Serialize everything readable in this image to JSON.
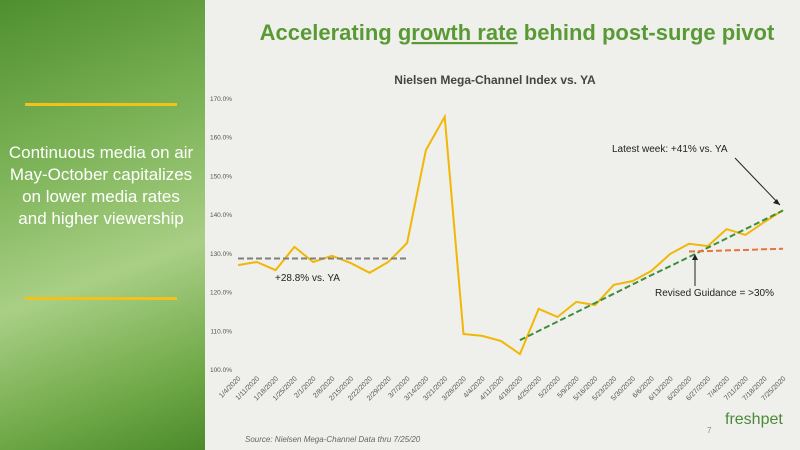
{
  "slide": {
    "title_parts": [
      "Accelerating ",
      "growth rate",
      " behind post-surge pivot"
    ],
    "sidebar_text": "Continuous media on air May-October capitalizes on lower media rates and higher viewership",
    "source": "Source: Nielsen Mega-Channel Data thru 7/25/20",
    "page_number": 7,
    "logo": "freshpet"
  },
  "chart_data": {
    "type": "line",
    "title": "Nielsen Mega-Channel Index vs. YA",
    "categories": [
      "1/4/2020",
      "1/11/2020",
      "1/18/2020",
      "1/25/2020",
      "2/1/2020",
      "2/8/2020",
      "2/15/2020",
      "2/22/2020",
      "2/29/2020",
      "3/7/2020",
      "3/14/2020",
      "3/21/2020",
      "3/28/2020",
      "4/4/2020",
      "4/11/2020",
      "4/18/2020",
      "4/25/2020",
      "5/2/2020",
      "5/9/2020",
      "5/16/2020",
      "5/23/2020",
      "5/30/2020",
      "6/6/2020",
      "6/13/2020",
      "6/20/2020",
      "6/27/2020",
      "7/4/2020",
      "7/11/2020",
      "7/18/2020",
      "7/25/2020"
    ],
    "series": [
      {
        "color": "#f2b705",
        "style": "solid",
        "values": [
          127.1,
          127.9,
          125.8,
          131.8,
          127.9,
          129.5,
          127.6,
          125.1,
          127.9,
          132.8,
          156.8,
          165.4,
          109.3,
          108.8,
          107.5,
          104.1,
          115.8,
          113.7,
          117.6,
          116.8,
          122,
          123,
          125.6,
          130,
          132.6,
          132,
          136.4,
          134.9,
          138.2,
          141.3
        ]
      },
      {
        "color": "#7f7f7f",
        "style": "dashed",
        "values": [
          128.8,
          128.8,
          128.8,
          128.8,
          128.8,
          128.8,
          128.8,
          128.8,
          128.8,
          128.8,
          null,
          null,
          null,
          null,
          null,
          null,
          null,
          null,
          null,
          null,
          null,
          null,
          null,
          null,
          null,
          null,
          null,
          null,
          null,
          null
        ]
      },
      {
        "color": "#3f8f3a",
        "style": "dashed",
        "values": [
          null,
          null,
          null,
          null,
          null,
          null,
          null,
          null,
          null,
          null,
          null,
          null,
          null,
          null,
          null,
          107.7,
          110.1,
          112.5,
          114.9,
          117.3,
          119.7,
          122.1,
          124.5,
          126.8,
          129.2,
          131.6,
          134,
          136.4,
          138.8,
          141.2
        ]
      },
      {
        "color": "#e8743b",
        "style": "dashed",
        "values": [
          null,
          null,
          null,
          null,
          null,
          null,
          null,
          null,
          null,
          null,
          null,
          null,
          null,
          null,
          null,
          null,
          null,
          null,
          null,
          null,
          null,
          null,
          null,
          null,
          130.6,
          130.7,
          130.9,
          131,
          131.2,
          131.3
        ]
      }
    ],
    "ylim": [
      100,
      170
    ],
    "yticks": [
      {
        "value": 100,
        "label": "100.0%"
      },
      {
        "value": 110,
        "label": "110.0%"
      },
      {
        "value": 120,
        "label": "120.0%"
      },
      {
        "value": 130,
        "label": "130.0%"
      },
      {
        "value": 140,
        "label": "140.0%"
      },
      {
        "value": 150,
        "label": "150.0%"
      },
      {
        "value": 160,
        "label": "160.0%"
      },
      {
        "value": 170,
        "label": "170.0%"
      }
    ],
    "grid": false,
    "annotations": [
      "+28.8% vs. YA",
      "Latest week: +41% vs. YA",
      "Revised Guidance = >30%"
    ]
  }
}
